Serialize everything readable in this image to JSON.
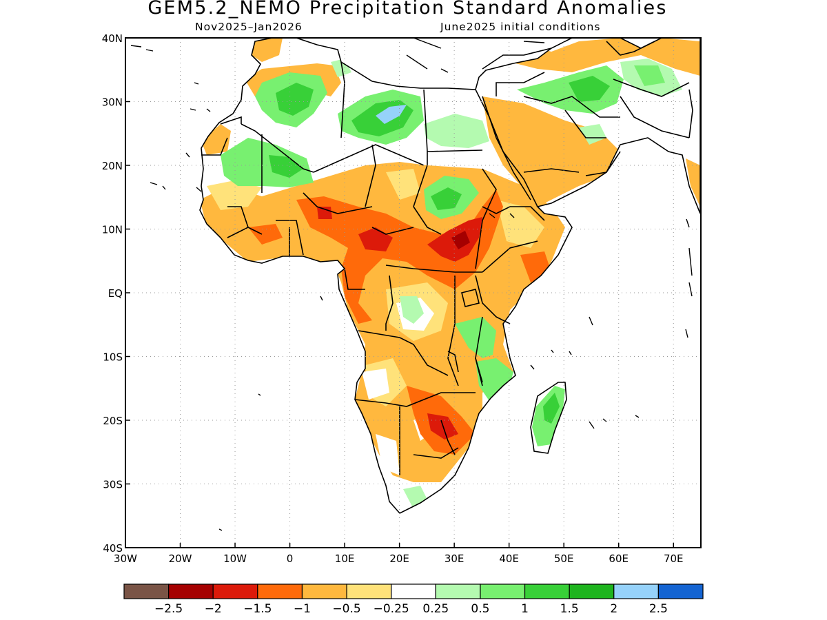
{
  "title": "GEM5.2_NEMO Precipitation Standard Anomalies",
  "subtitle_left": "Nov2025–Jan2026",
  "subtitle_right": "June2025 initial conditions",
  "axes": {
    "lon_range": [
      -30,
      75
    ],
    "lat_range": [
      -40,
      40
    ],
    "lon_ticks": [
      {
        "v": -30,
        "label": "30W"
      },
      {
        "v": -20,
        "label": "20W"
      },
      {
        "v": -10,
        "label": "10W"
      },
      {
        "v": 0,
        "label": "0"
      },
      {
        "v": 10,
        "label": "10E"
      },
      {
        "v": 20,
        "label": "20E"
      },
      {
        "v": 30,
        "label": "30E"
      },
      {
        "v": 40,
        "label": "40E"
      },
      {
        "v": 50,
        "label": "50E"
      },
      {
        "v": 60,
        "label": "60E"
      },
      {
        "v": 70,
        "label": "70E"
      }
    ],
    "lat_ticks": [
      {
        "v": 40,
        "label": "40N"
      },
      {
        "v": 30,
        "label": "30N"
      },
      {
        "v": 20,
        "label": "20N"
      },
      {
        "v": 10,
        "label": "10N"
      },
      {
        "v": 0,
        "label": "EQ"
      },
      {
        "v": -10,
        "label": "10S"
      },
      {
        "v": -20,
        "label": "20S"
      },
      {
        "v": -30,
        "label": "30S"
      },
      {
        "v": -40,
        "label": "40S"
      }
    ],
    "grid": true
  },
  "colorbar": {
    "colors": [
      "#7a5446",
      "#a50000",
      "#dc1a0a",
      "#ff6a0a",
      "#ffb83e",
      "#ffe27a",
      "#ffffff",
      "#b4fab0",
      "#78f070",
      "#38d038",
      "#1eb41e",
      "#96d2fa",
      "#1464d2"
    ],
    "labels": [
      "−2.5",
      "−2",
      "−1.5",
      "−1",
      "−0.5",
      "−0.25",
      "0.25",
      "0.5",
      "1",
      "1.5",
      "2",
      "2.5"
    ]
  },
  "map_colors": {
    "land_outline": "#000000",
    "ocean": "#ffffff"
  }
}
